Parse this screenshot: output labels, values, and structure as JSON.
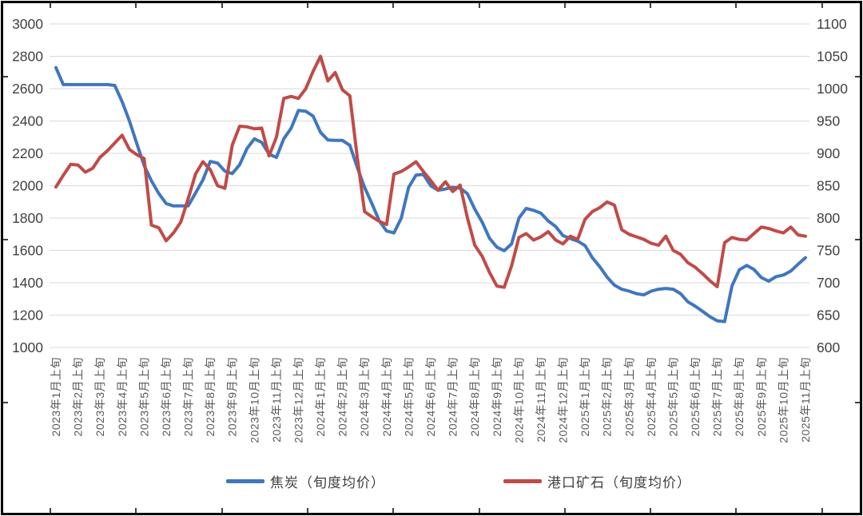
{
  "chart_data": {
    "type": "line",
    "title": "",
    "grid": "horizontal",
    "legend_position": "bottom",
    "x_axis": {
      "tick_labels": [
        "2023年1月上旬",
        "2023年2月上旬",
        "2023年3月上旬",
        "2023年4月上旬",
        "2023年5月上旬",
        "2023年6月上旬",
        "2023年7月上旬",
        "2023年8月上旬",
        "2023年9月上旬",
        "2023年10月上旬",
        "2023年11月上旬",
        "2023年12月上旬",
        "2024年1月上旬",
        "2024年2月上旬",
        "2024年3月上旬",
        "2024年4月上旬",
        "2024年5月上旬",
        "2024年6月上旬",
        "2024年7月上旬",
        "2024年8月上旬",
        "2024年9月上旬",
        "2024年10月上旬",
        "2024年11月上旬",
        "2024年12月上旬",
        "2025年1月上旬",
        "2025年2月上旬",
        "2025年3月上旬",
        "2025年4月上旬",
        "2025年5月上旬",
        "2025年6月上旬",
        "2025年7月上旬",
        "2025年8月上旬",
        "2025年9月上旬",
        "2025年10月上旬",
        "2025年11月上旬"
      ],
      "points_per_month": 3
    },
    "left_axis": {
      "min": 1000,
      "max": 3000,
      "step": 200,
      "tick_labels": [
        "3000",
        "2800",
        "2600",
        "2400",
        "2200",
        "2000",
        "1800",
        "1600",
        "1400",
        "1200",
        "1000"
      ]
    },
    "right_axis": {
      "min": 600,
      "max": 1100,
      "step": 50,
      "tick_labels": [
        "1100",
        "1050",
        "1000",
        "950",
        "900",
        "850",
        "800",
        "750",
        "700",
        "650",
        "600"
      ]
    },
    "series": [
      {
        "name": "焦炭（旬度均价）",
        "axis": "left",
        "color": "#4077be",
        "values": [
          2730,
          2625,
          2625,
          2625,
          2625,
          2625,
          2625,
          2625,
          2620,
          2520,
          2400,
          2260,
          2125,
          2030,
          1952,
          1890,
          1875,
          1875,
          1875,
          1955,
          2035,
          2150,
          2140,
          2090,
          2075,
          2130,
          2230,
          2290,
          2268,
          2195,
          2175,
          2290,
          2355,
          2465,
          2460,
          2430,
          2330,
          2283,
          2280,
          2280,
          2250,
          2115,
          1990,
          1890,
          1783,
          1720,
          1708,
          1800,
          1990,
          2065,
          2070,
          2000,
          1972,
          1980,
          1990,
          1985,
          1950,
          1855,
          1775,
          1675,
          1620,
          1598,
          1640,
          1800,
          1860,
          1848,
          1830,
          1782,
          1748,
          1692,
          1673,
          1658,
          1630,
          1555,
          1500,
          1435,
          1385,
          1360,
          1348,
          1333,
          1325,
          1348,
          1360,
          1365,
          1360,
          1333,
          1282,
          1255,
          1223,
          1190,
          1165,
          1160,
          1380,
          1480,
          1507,
          1482,
          1432,
          1410,
          1438,
          1448,
          1472,
          1515,
          1555
        ]
      },
      {
        "name": "港口矿石（旬度均价）",
        "axis": "right",
        "color": "#bf4b48",
        "values": [
          848,
          866,
          883,
          882,
          871,
          877,
          894,
          904,
          916,
          928,
          906,
          898,
          892,
          789,
          785,
          765,
          777,
          794,
          830,
          868,
          887,
          875,
          850,
          846,
          913,
          942,
          941,
          938,
          939,
          896,
          925,
          985,
          988,
          985,
          1000,
          1027,
          1050,
          1012,
          1025,
          998,
          989,
          895,
          810,
          802,
          795,
          790,
          868,
          872,
          879,
          887,
          872,
          858,
          843,
          856,
          841,
          851,
          800,
          758,
          741,
          716,
          695,
          693,
          726,
          770,
          776,
          766,
          771,
          779,
          766,
          760,
          772,
          767,
          798,
          810,
          816,
          825,
          820,
          782,
          775,
          771,
          767,
          761,
          758,
          772,
          750,
          744,
          731,
          724,
          714,
          703,
          694,
          762,
          770,
          767,
          766,
          776,
          786,
          784,
          780,
          777,
          786,
          774,
          772
        ]
      }
    ]
  },
  "legend": {
    "coke_label": "焦炭（旬度均价）",
    "ore_label": "港口矿石（旬度均价）"
  },
  "colors": {
    "coke_line": "#4077be",
    "ore_line": "#bf4b48",
    "gridline": "#d9d9d9",
    "left_tick_text": "#404040",
    "right_tick_text": "#404040",
    "x_tick_text": "#595959",
    "frame_border": "#000000",
    "background": "#ffffff"
  }
}
